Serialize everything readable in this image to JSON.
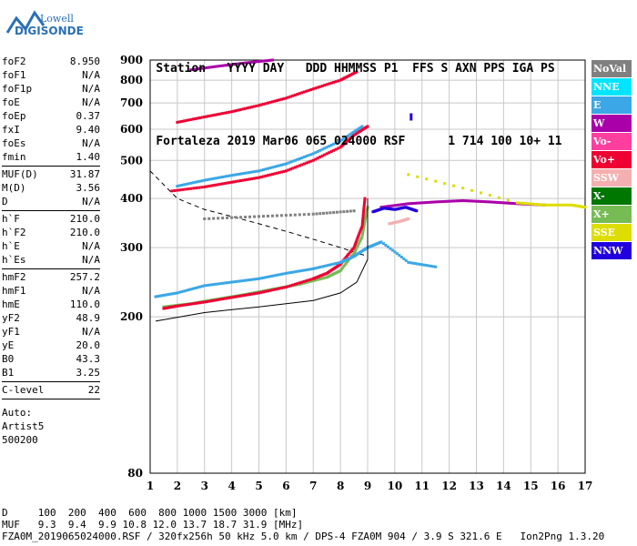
{
  "logo": {
    "line1": "Lowell",
    "line2": "DIGISONDE"
  },
  "header": {
    "cols": [
      "Station",
      "YYYY DAY",
      "DDD HHMMSS",
      "P1",
      "FFS",
      "S",
      "AXN",
      "PPS",
      "IGA",
      "PS"
    ],
    "values": [
      "Fortaleza",
      "2019 Mar06",
      "065 024000",
      "RSF",
      "",
      "1",
      "714",
      "100",
      "10+",
      "11"
    ]
  },
  "params": {
    "group1": [
      {
        "label": "foF2",
        "value": "8.950"
      },
      {
        "label": "foF1",
        "value": "N/A"
      },
      {
        "label": "foF1p",
        "value": "N/A"
      },
      {
        "label": "foE",
        "value": "N/A"
      },
      {
        "label": "foEp",
        "value": "0.37"
      },
      {
        "label": "fxI",
        "value": "9.40"
      },
      {
        "label": "foEs",
        "value": "N/A"
      },
      {
        "label": "fmin",
        "value": "1.40"
      }
    ],
    "group2": [
      {
        "label": "MUF(D)",
        "value": "31.87"
      },
      {
        "label": "M(D)",
        "value": "3.56"
      },
      {
        "label": "D",
        "value": "N/A"
      }
    ],
    "group3": [
      {
        "label": "h`F",
        "value": "210.0"
      },
      {
        "label": "h`F2",
        "value": "210.0"
      },
      {
        "label": "h`E",
        "value": "N/A"
      },
      {
        "label": "h`Es",
        "value": "N/A"
      }
    ],
    "group4": [
      {
        "label": "hmF2",
        "value": "257.2"
      },
      {
        "label": "hmF1",
        "value": "N/A"
      },
      {
        "label": "hmE",
        "value": "110.0"
      },
      {
        "label": "yF2",
        "value": "48.9"
      },
      {
        "label": "yF1",
        "value": "N/A"
      },
      {
        "label": "yE",
        "value": "20.0"
      },
      {
        "label": "B0",
        "value": "43.3"
      },
      {
        "label": "B1",
        "value": "3.25"
      }
    ],
    "group5": [
      {
        "label": "C-level",
        "value": "22"
      }
    ],
    "auto": [
      "Auto:",
      "Artist5",
      "500200"
    ]
  },
  "legend": [
    {
      "label": "NoVal",
      "color": "#808080"
    },
    {
      "label": "NNE",
      "color": "#00e5ff"
    },
    {
      "label": "E",
      "color": "#3ba7e6"
    },
    {
      "label": "W",
      "color": "#aa00aa"
    },
    {
      "label": "Vo-",
      "color": "#ff3fa0"
    },
    {
      "label": "Vo+",
      "color": "#ee0033"
    },
    {
      "label": "SSW",
      "color": "#f4b0b0"
    },
    {
      "label": "X-",
      "color": "#007700"
    },
    {
      "label": "X+",
      "color": "#77bb55"
    },
    {
      "label": "SSE",
      "color": "#dddd00"
    },
    {
      "label": "NNW",
      "color": "#2200dd"
    }
  ],
  "footer": {
    "line1": "D     100  200  400  600  800 1000 1500 3000 [km]",
    "line2": "MUF   9.3  9.4  9.9 10.8 12.0 13.7 18.7 31.9 [MHz]",
    "line3": "FZA0M_2019065024000.RSF / 320fx256h 50 kHz 5.0 km / DPS-4 FZA0M 904 / 3.9 S 321.6 E   Ion2Png 1.3.20"
  },
  "chart_data": {
    "type": "scatter",
    "x_ticks": [
      1,
      2,
      3,
      4,
      5,
      6,
      7,
      8,
      9,
      10,
      11,
      12,
      13,
      14,
      15,
      16,
      17
    ],
    "y_ticks": [
      80,
      200,
      300,
      400,
      500,
      600,
      700,
      800,
      900
    ],
    "xlim": [
      1,
      17
    ],
    "ylim": [
      80,
      900
    ],
    "y_scale": "log",
    "grid": true,
    "traces": [
      {
        "name": "X+",
        "color": "#77bb55",
        "x": [
          1.5,
          2.5,
          3.5,
          4.5,
          5.5,
          6.5,
          7.5,
          8.0,
          8.5,
          8.8,
          9.0
        ],
        "y": [
          212,
          216,
          222,
          228,
          235,
          242,
          252,
          262,
          290,
          320,
          380
        ]
      },
      {
        "name": "Vo+",
        "color": "#ee0033",
        "x": [
          1.5,
          2.0,
          3.0,
          4.0,
          5.0,
          6.0,
          7.0,
          7.5,
          8.0,
          8.5,
          8.8,
          8.9
        ],
        "y": [
          210,
          213,
          218,
          224,
          230,
          238,
          250,
          258,
          272,
          300,
          340,
          400
        ]
      },
      {
        "name": "E",
        "color": "#3ba7e6",
        "x": [
          1.2,
          2.0,
          3.0,
          4.0,
          5.0,
          6.0,
          7.0,
          8.0,
          8.5,
          9.0,
          9.5,
          10.5,
          11.5
        ],
        "y": [
          225,
          230,
          240,
          245,
          250,
          258,
          265,
          275,
          285,
          300,
          310,
          275,
          268
        ]
      },
      {
        "name": "Vo+",
        "color": "#ee0033",
        "x": [
          1.8,
          3.0,
          4.0,
          5.0,
          6.0,
          7.0,
          8.0,
          8.5,
          9.0
        ],
        "y": [
          418,
          428,
          440,
          452,
          470,
          500,
          540,
          580,
          610
        ]
      },
      {
        "name": "E",
        "color": "#3ba7e6",
        "x": [
          2.0,
          3.0,
          4.0,
          5.0,
          6.0,
          7.0,
          8.0,
          8.8
        ],
        "y": [
          430,
          445,
          458,
          470,
          490,
          520,
          560,
          610
        ]
      },
      {
        "name": "Vo+",
        "color": "#ee0033",
        "x": [
          2.0,
          3.0,
          4.0,
          5.0,
          6.0,
          7.0,
          8.0,
          8.6
        ],
        "y": [
          625,
          645,
          665,
          690,
          720,
          760,
          800,
          840
        ]
      },
      {
        "name": "W",
        "color": "#aa00aa",
        "x": [
          2.5,
          3.5,
          4.5,
          5.5
        ],
        "y": [
          850,
          868,
          885,
          900
        ]
      },
      {
        "name": "W",
        "color": "#aa00aa",
        "x": [
          9.5,
          10.5,
          11.5,
          12.5,
          13.5,
          14.5,
          15.5
        ],
        "y": [
          380,
          388,
          392,
          395,
          392,
          388,
          385
        ]
      },
      {
        "name": "NNW",
        "color": "#2200dd",
        "x": [
          9.2,
          9.6,
          10.0,
          10.4,
          10.8
        ],
        "y": [
          370,
          378,
          375,
          380,
          372
        ]
      },
      {
        "name": "SSE",
        "color": "#dddd00",
        "x": [
          10.5,
          14.5,
          15.5,
          16.5,
          17.0
        ],
        "y": [
          460,
          390,
          385,
          385,
          380
        ]
      },
      {
        "name": "SSW",
        "color": "#f4b0b0",
        "x": [
          9.8,
          10.2,
          10.5
        ],
        "y": [
          345,
          350,
          355
        ]
      },
      {
        "name": "NoVal",
        "color": "#808080",
        "x": [
          3.0,
          5.0,
          7.0,
          8.5
        ],
        "y": [
          355,
          360,
          365,
          372
        ]
      }
    ],
    "profile_dashed": {
      "x": [
        1.0,
        2.0,
        3.0,
        4.0,
        5.0,
        6.0,
        7.0,
        8.0,
        9.0
      ],
      "y": [
        470,
        400,
        375,
        360,
        345,
        330,
        315,
        300,
        285
      ]
    },
    "profile_solid": {
      "x": [
        1.2,
        3.0,
        5.0,
        7.0,
        8.0,
        8.6,
        9.0,
        9.0
      ],
      "y": [
        195,
        205,
        212,
        220,
        230,
        245,
        280,
        400
      ]
    },
    "marker": {
      "x": 10.6,
      "y": 645,
      "color": "#2200dd"
    }
  }
}
